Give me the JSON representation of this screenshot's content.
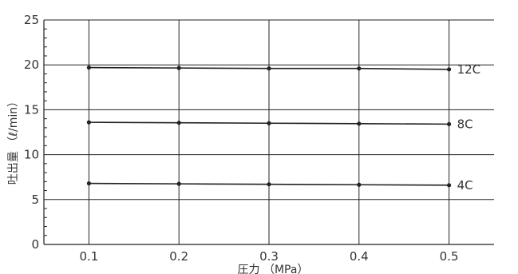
{
  "chart_data": {
    "type": "line",
    "x": [
      0.1,
      0.2,
      0.3,
      0.4,
      0.5
    ],
    "x_tick_labels": [
      "0.1",
      "0.2",
      "0.3",
      "0.4",
      "0.5"
    ],
    "y_tick_labels": [
      "0",
      "5",
      "10",
      "15",
      "20",
      "25"
    ],
    "xlabel": "圧力 （MPa）",
    "ylabel": "吐出量 （ℓ/min）",
    "ylim": [
      0,
      25
    ],
    "xlim": [
      0.05,
      0.55
    ],
    "grid": true,
    "series": [
      {
        "name": "12C",
        "values": [
          19.7,
          19.65,
          19.6,
          19.6,
          19.5
        ]
      },
      {
        "name": "8C",
        "values": [
          13.6,
          13.55,
          13.5,
          13.45,
          13.4
        ]
      },
      {
        "name": "4C",
        "values": [
          6.8,
          6.75,
          6.7,
          6.65,
          6.6
        ]
      }
    ],
    "colors": {
      "line": "#222222",
      "grid": "#222222",
      "text": "#333333"
    }
  }
}
